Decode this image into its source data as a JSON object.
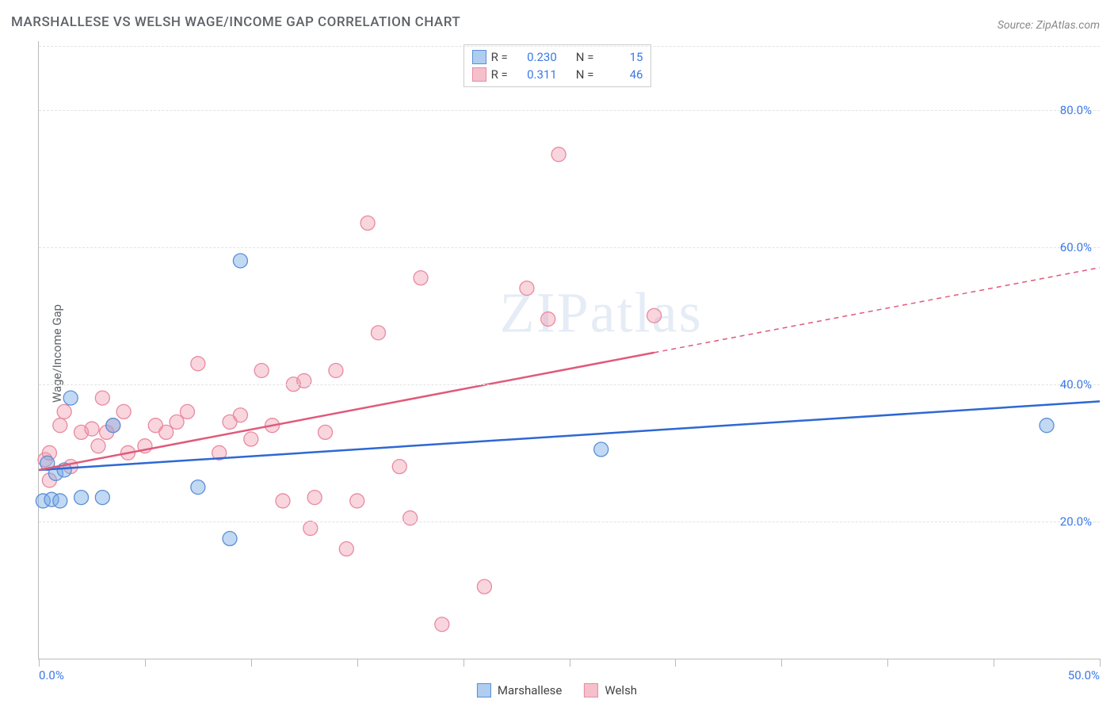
{
  "title": "MARSHALLESE VS WELSH WAGE/INCOME GAP CORRELATION CHART",
  "source_label": "Source: ZipAtlas.com",
  "ylabel": "Wage/Income Gap",
  "watermark": "ZIPatlas",
  "xlim": [
    0,
    50
  ],
  "ylim": [
    0,
    90
  ],
  "yticks": [
    20,
    40,
    60,
    80
  ],
  "ytick_labels": [
    "20.0%",
    "40.0%",
    "60.0%",
    "80.0%"
  ],
  "xticks": [
    0,
    5,
    10,
    15,
    20,
    25,
    30,
    35,
    40,
    45,
    50
  ],
  "xtick_labels_shown": {
    "0": "0.0%",
    "50": "50.0%"
  },
  "grid_color": "#e2e2e2",
  "axis_color": "#bbbbbb",
  "tick_label_color": "#3b78e7",
  "background_color": "#ffffff",
  "series": [
    {
      "name": "Marshallese",
      "marker_fill": "rgba(120,170,230,0.45)",
      "marker_stroke": "#5b8fd6",
      "line_color": "#2e68d3",
      "swatch_fill": "#aecdf0",
      "swatch_border": "#5b8fd6",
      "R": "0.230",
      "N": "15",
      "points": [
        [
          0.2,
          23.0
        ],
        [
          0.4,
          28.5
        ],
        [
          0.6,
          23.2
        ],
        [
          0.8,
          27.0
        ],
        [
          1.0,
          23.0
        ],
        [
          1.2,
          27.5
        ],
        [
          1.5,
          38.0
        ],
        [
          2.0,
          23.5
        ],
        [
          3.0,
          23.5
        ],
        [
          3.5,
          34.0
        ],
        [
          7.5,
          25.0
        ],
        [
          9.0,
          17.5
        ],
        [
          9.5,
          58.0
        ],
        [
          26.5,
          30.5
        ],
        [
          47.5,
          34.0
        ]
      ],
      "trend": {
        "x1": 0,
        "y1": 27.5,
        "x2": 50,
        "y2": 37.5,
        "dash_from_x": 50
      }
    },
    {
      "name": "Welsh",
      "marker_fill": "rgba(240,150,170,0.40)",
      "marker_stroke": "#e88aa0",
      "line_color": "#e05a7a",
      "swatch_fill": "#f5c0cc",
      "swatch_border": "#e88aa0",
      "R": "0.311",
      "N": "46",
      "points": [
        [
          0.3,
          29.0
        ],
        [
          0.5,
          26.0
        ],
        [
          0.5,
          30.0
        ],
        [
          1.0,
          34.0
        ],
        [
          1.2,
          36.0
        ],
        [
          1.5,
          28.0
        ],
        [
          2.0,
          33.0
        ],
        [
          2.5,
          33.5
        ],
        [
          2.8,
          31.0
        ],
        [
          3.0,
          38.0
        ],
        [
          3.2,
          33.0
        ],
        [
          3.5,
          34.0
        ],
        [
          4.0,
          36.0
        ],
        [
          4.2,
          30.0
        ],
        [
          5.0,
          31.0
        ],
        [
          5.5,
          34.0
        ],
        [
          6.0,
          33.0
        ],
        [
          6.5,
          34.5
        ],
        [
          7.0,
          36.0
        ],
        [
          7.5,
          43.0
        ],
        [
          8.5,
          30.0
        ],
        [
          9.0,
          34.5
        ],
        [
          9.5,
          35.5
        ],
        [
          10.0,
          32.0
        ],
        [
          10.5,
          42.0
        ],
        [
          11.0,
          34.0
        ],
        [
          11.5,
          23.0
        ],
        [
          12.0,
          40.0
        ],
        [
          12.5,
          40.5
        ],
        [
          12.8,
          19.0
        ],
        [
          13.0,
          23.5
        ],
        [
          13.5,
          33.0
        ],
        [
          14.0,
          42.0
        ],
        [
          14.5,
          16.0
        ],
        [
          15.0,
          23.0
        ],
        [
          15.5,
          63.5
        ],
        [
          16.0,
          47.5
        ],
        [
          17.0,
          28.0
        ],
        [
          17.5,
          20.5
        ],
        [
          18.0,
          55.5
        ],
        [
          19.0,
          5.0
        ],
        [
          21.0,
          10.5
        ],
        [
          23.0,
          54.0
        ],
        [
          24.0,
          49.5
        ],
        [
          24.5,
          73.5
        ],
        [
          29.0,
          50.0
        ]
      ],
      "trend": {
        "x1": 0,
        "y1": 27.5,
        "x2": 50,
        "y2": 57.0,
        "dash_from_x": 29
      }
    }
  ],
  "marker_radius": 9,
  "legend_top": {
    "labels": [
      "R =",
      "N ="
    ]
  },
  "legend_bottom_labels": [
    "Marshallese",
    "Welsh"
  ]
}
